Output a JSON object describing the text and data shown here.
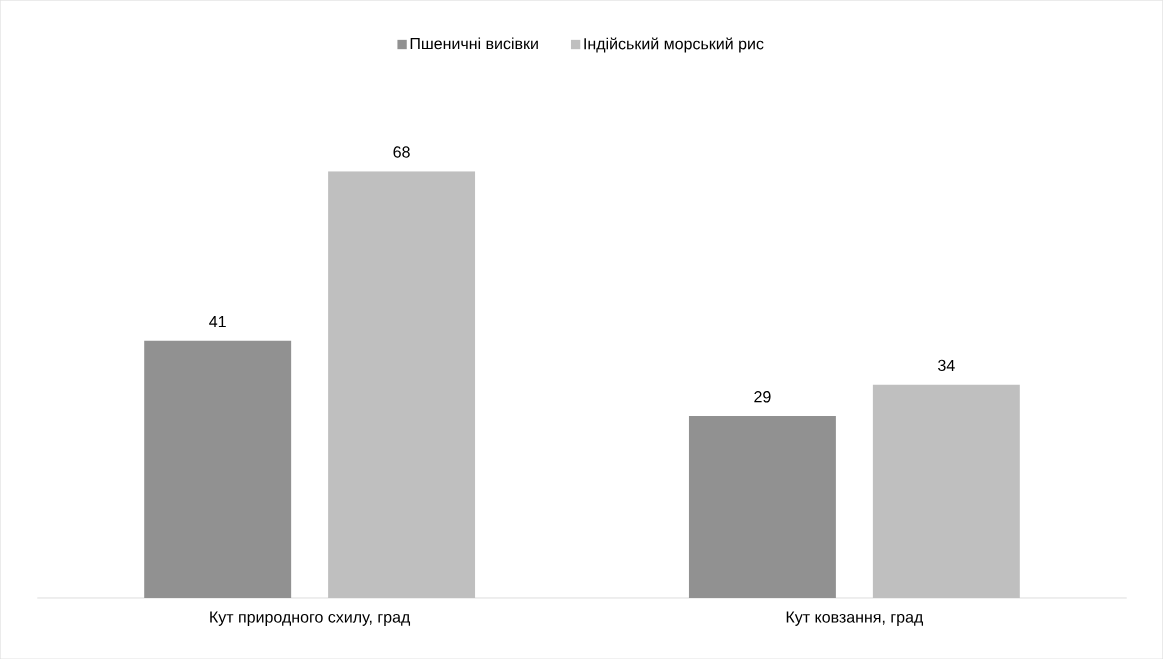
{
  "chart_data": {
    "type": "bar",
    "categories": [
      "Кут природного схилу, град",
      "Кут ковзання, град"
    ],
    "series": [
      {
        "name": "Пшеничні висівки",
        "color": "#919191",
        "values": [
          41,
          29
        ]
      },
      {
        "name": "Індійський морський рис",
        "color": "#bfbfbf",
        "values": [
          68,
          34
        ]
      }
    ],
    "tick_labels": "x",
    "data_labels": true,
    "legend": "top"
  }
}
